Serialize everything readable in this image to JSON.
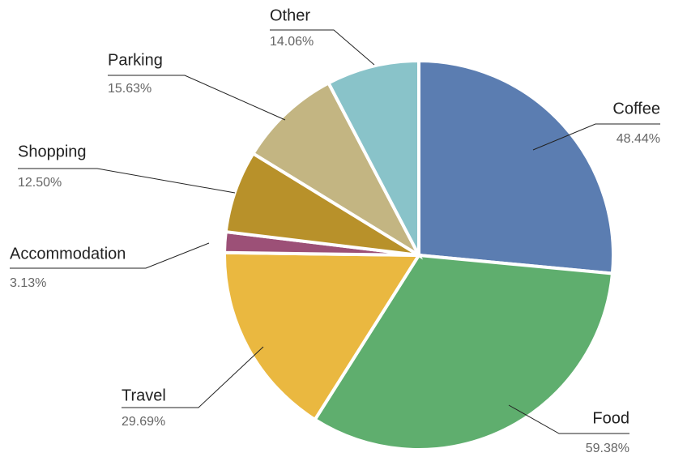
{
  "chart_data": {
    "type": "pie",
    "categories": [
      "Coffee",
      "Food",
      "Travel",
      "Accommodation",
      "Shopping",
      "Parking",
      "Other"
    ],
    "values": [
      48.44,
      59.38,
      29.69,
      3.13,
      12.5,
      15.63,
      14.06
    ],
    "value_labels": [
      "48.44%",
      "59.38%",
      "29.69%",
      "3.13%",
      "12.50%",
      "15.63%",
      "14.06%"
    ],
    "colors": [
      "#5b7db1",
      "#5fae6e",
      "#eab840",
      "#9c5077",
      "#b8912a",
      "#c3b582",
      "#89c3c9"
    ]
  }
}
